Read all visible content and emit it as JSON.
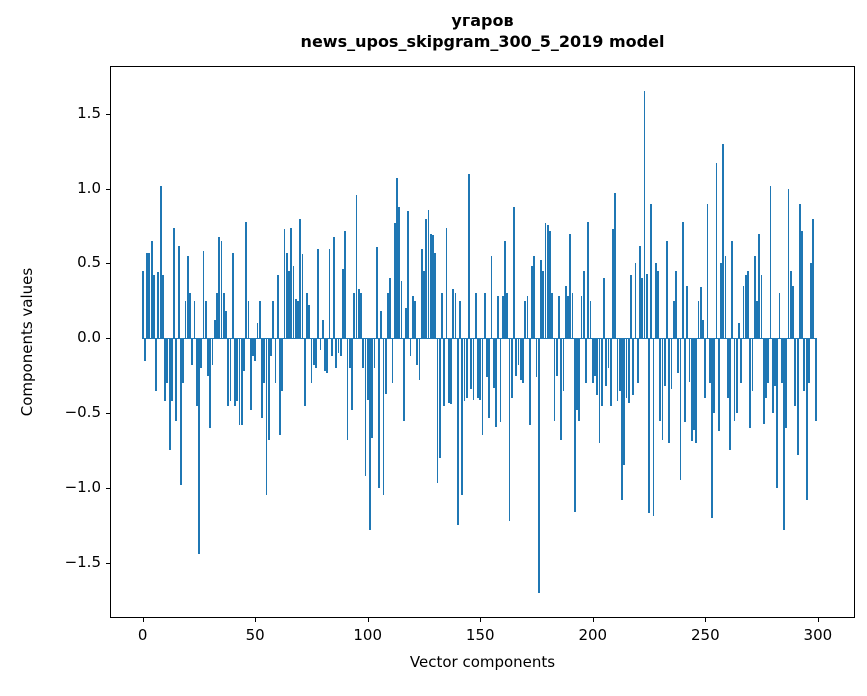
{
  "chart_data": {
    "type": "bar",
    "title_line1": "угаров",
    "title_line2": "news_upos_skipgram_300_5_2019 model",
    "xlabel": "Vector components",
    "ylabel": "Components values",
    "bar_color": "#1f77b4",
    "n_components": 300,
    "bar_width": 0.8,
    "xlim": [
      -14.5,
      316.5
    ],
    "ylim": [
      -1.87,
      1.82
    ],
    "xticks": [
      0,
      50,
      100,
      150,
      200,
      250,
      300
    ],
    "xtick_labels": [
      "0",
      "50",
      "100",
      "150",
      "200",
      "250",
      "300"
    ],
    "yticks": [
      1.5,
      1.0,
      0.5,
      0.0,
      -0.5,
      -1.0,
      -1.5
    ],
    "ytick_labels": [
      "1.5",
      "1.0",
      "0.5",
      "0.0",
      "−0.5",
      "−1.0",
      "−1.5"
    ],
    "grid": false,
    "legend": null,
    "values": [
      0.45,
      -0.15,
      0.57,
      0.57,
      0.65,
      0.42,
      -0.35,
      0.44,
      1.02,
      0.42,
      -0.42,
      -0.3,
      -0.75,
      -0.42,
      0.74,
      -0.55,
      0.62,
      -0.98,
      -0.3,
      0.25,
      0.55,
      0.3,
      -0.18,
      0.25,
      -0.45,
      -1.44,
      -0.2,
      0.58,
      0.25,
      -0.25,
      -0.6,
      -0.18,
      0.12,
      0.3,
      0.68,
      0.65,
      0.3,
      0.18,
      -0.45,
      -0.42,
      0.57,
      -0.45,
      -0.42,
      -0.58,
      -0.58,
      -0.22,
      0.78,
      0.25,
      -0.48,
      -0.12,
      -0.15,
      0.1,
      0.25,
      -0.53,
      -0.3,
      -1.05,
      -0.68,
      -0.12,
      0.25,
      -0.3,
      0.42,
      -0.65,
      -0.35,
      0.73,
      0.57,
      0.45,
      0.74,
      0.48,
      0.26,
      0.25,
      0.8,
      0.56,
      -0.45,
      0.3,
      0.22,
      -0.3,
      -0.18,
      -0.2,
      0.6,
      -0.08,
      0.12,
      -0.22,
      -0.23,
      0.6,
      -0.12,
      0.68,
      -0.2,
      -0.1,
      -0.12,
      0.46,
      0.72,
      -0.68,
      -0.2,
      -0.48,
      0.3,
      0.96,
      0.33,
      0.3,
      -0.2,
      -0.92,
      -0.41,
      -1.28,
      -0.67,
      -0.2,
      0.61,
      -1.0,
      0.18,
      -1.05,
      -0.37,
      0.3,
      0.4,
      -0.3,
      0.77,
      1.07,
      0.88,
      0.38,
      -0.55,
      0.2,
      0.85,
      -0.12,
      0.28,
      0.25,
      -0.18,
      -0.28,
      0.6,
      0.45,
      0.8,
      0.86,
      0.7,
      0.69,
      0.57,
      -0.97,
      -0.8,
      0.3,
      -0.45,
      0.74,
      -0.43,
      -0.44,
      0.33,
      0.3,
      -1.25,
      0.25,
      -1.05,
      -0.42,
      -0.4,
      1.1,
      -0.34,
      -0.41,
      0.3,
      -0.4,
      -0.41,
      -0.65,
      0.3,
      -0.26,
      -0.53,
      0.55,
      -0.33,
      -0.59,
      0.28,
      -0.56,
      0.28,
      0.65,
      0.3,
      -1.22,
      -0.4,
      0.88,
      -0.25,
      -0.18,
      -0.28,
      -0.3,
      0.25,
      0.28,
      -0.58,
      0.48,
      0.55,
      -0.26,
      -1.7,
      0.52,
      0.45,
      0.77,
      0.76,
      0.72,
      0.3,
      -0.55,
      -0.25,
      0.28,
      -0.68,
      -0.35,
      0.35,
      0.28,
      0.7,
      0.3,
      -1.16,
      -0.48,
      -0.55,
      0.28,
      0.45,
      -0.3,
      0.78,
      0.25,
      -0.3,
      -0.25,
      -0.38,
      -0.7,
      -0.45,
      0.4,
      -0.32,
      -0.2,
      -0.45,
      0.73,
      0.97,
      -0.42,
      -0.35,
      -1.08,
      -0.85,
      -0.4,
      -0.43,
      0.42,
      -0.38,
      0.5,
      -0.3,
      0.62,
      0.4,
      1.65,
      0.43,
      -1.17,
      0.9,
      -1.19,
      0.5,
      0.45,
      -0.55,
      -0.68,
      -0.32,
      0.65,
      -0.7,
      -0.34,
      0.25,
      0.45,
      -0.23,
      -0.95,
      0.78,
      -0.56,
      0.35,
      -0.29,
      -0.69,
      -0.61,
      -0.7,
      0.25,
      0.34,
      0.12,
      -0.4,
      0.9,
      -0.3,
      -1.2,
      -0.5,
      1.17,
      -0.62,
      0.5,
      1.3,
      0.55,
      -0.4,
      -0.75,
      0.65,
      -0.55,
      -0.5,
      0.1,
      -0.3,
      0.35,
      0.42,
      0.45,
      -0.6,
      -0.35,
      0.55,
      0.25,
      0.7,
      0.42,
      -0.57,
      -0.4,
      -0.3,
      1.02,
      -0.5,
      -0.32,
      -1.0,
      0.3,
      -0.3,
      -1.28,
      -0.6,
      1.0,
      0.45,
      0.35,
      -0.45,
      -0.78,
      0.9,
      0.72,
      -0.35,
      -1.08,
      -0.3,
      0.5,
      0.8,
      -0.55
    ]
  }
}
